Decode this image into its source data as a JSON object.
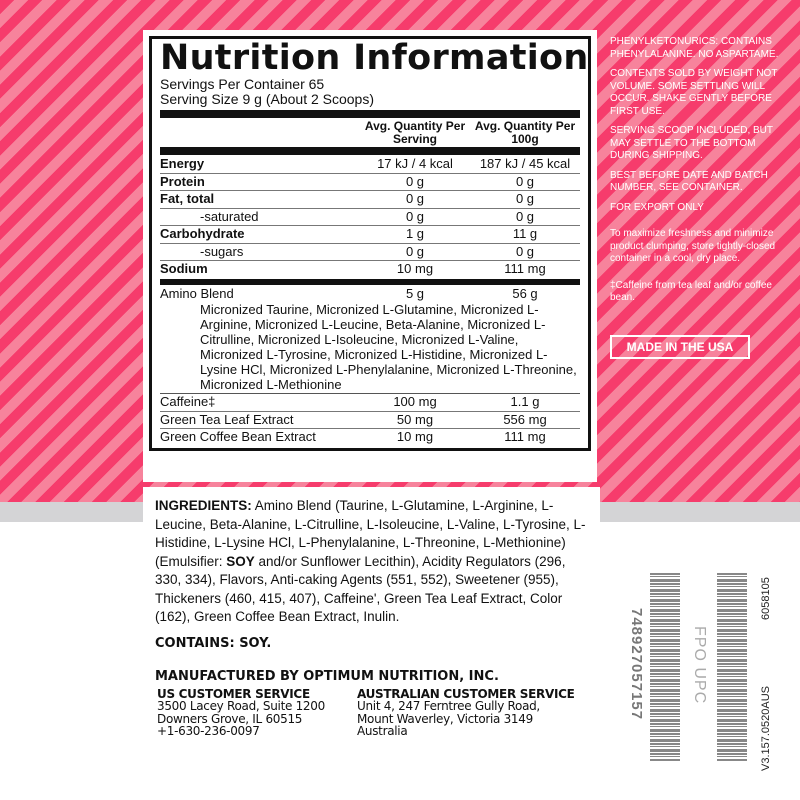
{
  "nutrition": {
    "title": "Nutrition Information",
    "servings_per_container": "Servings Per Container 65",
    "serving_size": "Serving Size 9 g (About 2 Scoops)",
    "col_per_serving": "Avg. Quantity Per Serving",
    "col_per_100g": "Avg. Quantity Per 100g",
    "rows": [
      {
        "label": "Energy",
        "serving": "17 kJ / 4 kcal",
        "per100": "187 kJ / 45 kcal"
      },
      {
        "label": "Protein",
        "serving": "0 g",
        "per100": "0 g"
      },
      {
        "label": "Fat, total",
        "serving": "0 g",
        "per100": "0 g"
      },
      {
        "label": "-saturated",
        "serving": "0 g",
        "per100": "0 g"
      },
      {
        "label": "Carbohydrate",
        "serving": "1 g",
        "per100": "11 g"
      },
      {
        "label": "-sugars",
        "serving": "0 g",
        "per100": "0 g"
      },
      {
        "label": "Sodium",
        "serving": "10 mg",
        "per100": "111 mg"
      }
    ],
    "amino": {
      "label": "Amino Blend",
      "serving": "5 g",
      "per100": "56 g",
      "description": "Micronized Taurine, Micronized L-Glutamine, Micronized L-Arginine, Micronized L-Leucine, Beta-Alanine, Micronized L-Citrulline, Micronized L-Isoleucine, Micronized L-Valine, Micronized L-Tyrosine, Micronized L-Histidine, Micronized L-Lysine HCl, Micronized L-Phenylalanine, Micronized L-Threonine, Micronized L-Methionine"
    },
    "extra_rows": [
      {
        "label": "Caffeine‡",
        "serving": "100 mg",
        "per100": "1.1 g"
      },
      {
        "label": "Green Tea Leaf Extract",
        "serving": "50 mg",
        "per100": "556 mg"
      },
      {
        "label": "Green Coffee Bean Extract",
        "serving": "10 mg",
        "per100": "111 mg"
      }
    ]
  },
  "side": {
    "p1": "PHENYLKETONURICS: CONTAINS PHENYLALANINE. NO ASPARTAME.",
    "p2": "CONTENTS SOLD BY WEIGHT NOT VOLUME. SOME SETTLING WILL OCCUR. SHAKE GENTLY BEFORE FIRST USE.",
    "p3": "SERVING SCOOP INCLUDED, BUT MAY SETTLE TO THE BOTTOM DURING SHIPPING.",
    "p4": "BEST BEFORE DATE AND BATCH NUMBER, SEE CONTAINER.",
    "p5": "FOR EXPORT ONLY",
    "p6": "To maximize freshness and minimize product clumping, store tightly-closed container in a cool, dry place.",
    "p7": "‡Caffeine from tea leaf and/or coffee bean.",
    "made_in": "MADE IN THE USA"
  },
  "ingredients": {
    "heading": "INGREDIENTS:",
    "text_1": " Amino Blend (Taurine, L-Glutamine, L-Arginine, L-Leucine, Beta-Alanine, L-Citrulline, L-Isoleucine, L-Valine, L-Tyrosine, L-Histidine, L-Lysine HCl, L-Phenylalanine, L-Threonine, L-Methionine) (Emulsifier: ",
    "soy": "SOY",
    "text_2": " and/or Sunflower Lecithin), Acidity Regulators (296, 330, 334), Flavors, Anti-caking Agents (551, 552), Sweetener (955), Thickeners (460, 415, 407), Caffeine', Green Tea Leaf Extract, Color (162), Green Coffee Bean Extract, Inulin.",
    "contains": "CONTAINS: SOY."
  },
  "manufacturer": {
    "title": "MANUFACTURED BY OPTIMUM NUTRITION, INC.",
    "us": {
      "heading": "US CUSTOMER SERVICE",
      "line1": "3500 Lacey Road, Suite 1200",
      "line2": "Downers Grove, IL 60515",
      "line3": "+1-630-236-0097"
    },
    "au": {
      "heading": "AUSTRALIAN CUSTOMER SERVICE",
      "line1": "Unit 4, 247 Ferntree Gully Road,",
      "line2": "Mount Waverley, Victoria 3149",
      "line3": "Australia"
    }
  },
  "barcode": {
    "upc": "748927057157",
    "fpo": "FPO UPC",
    "code": "6058105",
    "version": "V3.157.0520AUS"
  },
  "colors": {
    "stripe_dark": "#f63c6c",
    "stripe_light": "#f7839c",
    "band_gray": "#d4d4d6"
  }
}
